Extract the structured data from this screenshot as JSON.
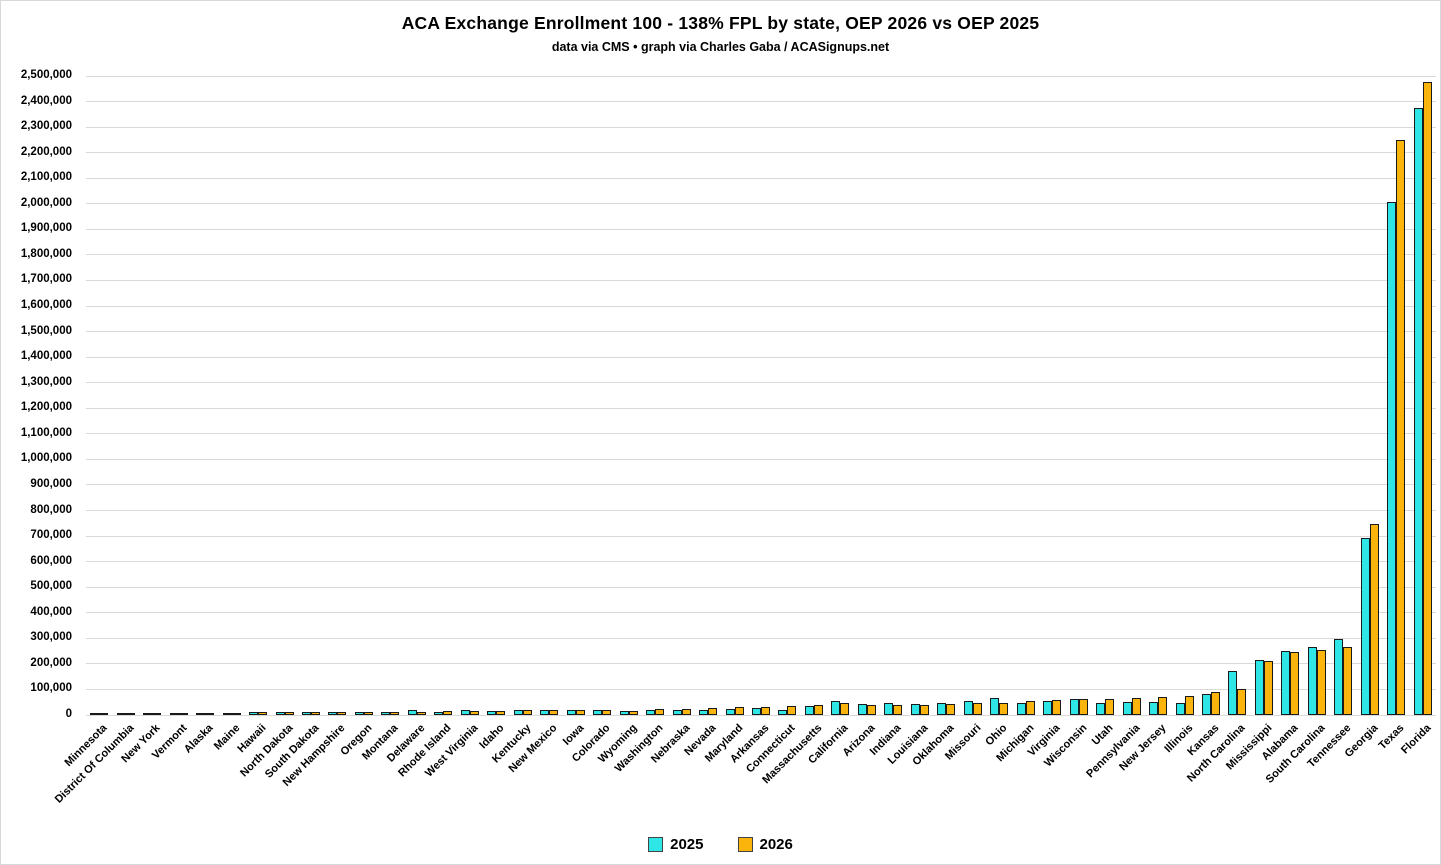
{
  "title": "ACA Exchange Enrollment 100 - 138% FPL by state, OEP 2026 vs OEP 2025",
  "subtitle": "data via CMS • graph via Charles Gaba / ACASignups.net",
  "legend": {
    "items": [
      {
        "label": "2025",
        "color": "#2ee6e6"
      },
      {
        "label": "2026",
        "color": "#fbb40c"
      }
    ]
  },
  "chart_data": {
    "type": "bar",
    "title": "ACA Exchange Enrollment 100 - 138% FPL by state, OEP 2026 vs OEP 2025",
    "subtitle": "data via CMS • graph via Charles Gaba / ACASignups.net",
    "xlabel": "",
    "ylabel": "",
    "ylim": [
      0,
      2500000
    ],
    "y_tick_step": 100000,
    "y_tick_labels": [
      "0",
      "100,000",
      "200,000",
      "300,000",
      "400,000",
      "500,000",
      "600,000",
      "700,000",
      "800,000",
      "900,000",
      "1,000,000",
      "1,100,000",
      "1,200,000",
      "1,300,000",
      "1,400,000",
      "1,500,000",
      "1,600,000",
      "1,700,000",
      "1,800,000",
      "1,900,000",
      "2,000,000",
      "2,100,000",
      "2,200,000",
      "2,300,000",
      "2,400,000",
      "2,500,000"
    ],
    "grid": "horizontal",
    "legend_position": "bottom",
    "categories": [
      "Minnesota",
      "District Of Columbia",
      "New York",
      "Vermont",
      "Alaska",
      "Maine",
      "Hawaii",
      "North Dakota",
      "South Dakota",
      "New Hampshire",
      "Oregon",
      "Montana",
      "Delaware",
      "Rhode Island",
      "West Virginia",
      "Idaho",
      "Kentucky",
      "New Mexico",
      "Iowa",
      "Colorado",
      "Wyoming",
      "Washington",
      "Nebraska",
      "Nevada",
      "Maryland",
      "Arkansas",
      "Connecticut",
      "Massachusetts",
      "California",
      "Arizona",
      "Indiana",
      "Louisiana",
      "Oklahoma",
      "Missouri",
      "Ohio",
      "Michigan",
      "Virginia",
      "Wisconsin",
      "Utah",
      "Pennsylvania",
      "New Jersey",
      "Illinois",
      "Kansas",
      "North Carolina",
      "Mississippi",
      "Alabama",
      "South Carolina",
      "Tennessee",
      "Georgia",
      "Texas",
      "Florida"
    ],
    "series": [
      {
        "name": "2025",
        "color": "#2ee6e6",
        "values": [
          400,
          700,
          1000,
          1200,
          1500,
          1800,
          2200,
          2700,
          3100,
          3500,
          4200,
          4600,
          11000,
          5500,
          13000,
          6500,
          13000,
          13500,
          11000,
          11000,
          6000,
          12000,
          13000,
          13000,
          17000,
          20000,
          12000,
          27000,
          48000,
          34000,
          40000,
          36000,
          40000,
          48000,
          58000,
          40000,
          48000,
          56000,
          39000,
          43000,
          44000,
          38000,
          76000,
          164000,
          207000,
          241000,
          257000,
          288000,
          683000,
          2000000,
          2367000
        ]
      },
      {
        "name": "2026",
        "color": "#fbb40c",
        "values": [
          400,
          600,
          1000,
          1200,
          1500,
          1900,
          2300,
          2800,
          3200,
          3700,
          4300,
          4800,
          5500,
          6000,
          6500,
          7000,
          11000,
          11500,
          11500,
          12000,
          9000,
          15000,
          16000,
          21000,
          24000,
          25000,
          26000,
          33000,
          38000,
          30000,
          33000,
          33000,
          34000,
          39000,
          40000,
          46000,
          50000,
          53000,
          54000,
          57000,
          61000,
          66000,
          81000,
          94000,
          203000,
          238000,
          246000,
          258000,
          740000,
          2241000,
          2467000
        ]
      }
    ]
  }
}
